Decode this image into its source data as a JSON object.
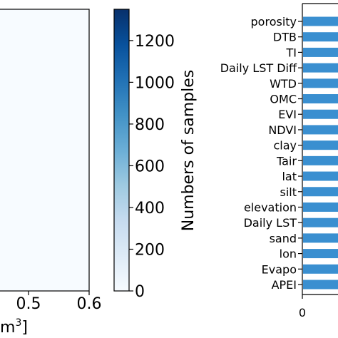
{
  "chart_data": [
    {
      "type": "heatmap",
      "x_tick_labels": [
        "0.5",
        "0.6"
      ],
      "xlabel_fragment": "m",
      "xlabel_superscript": "3",
      "xlabel_closing": "]",
      "xlim": [
        0.43,
        0.6
      ],
      "background_color": "#f7fbff"
    },
    {
      "type": "colorbar",
      "label": "Numbers of samples",
      "ticks": [
        0,
        200,
        400,
        600,
        800,
        1000,
        1200
      ],
      "tick_labels": [
        "0",
        "200",
        "400",
        "600",
        "800",
        "1000",
        "1200"
      ],
      "range": [
        0,
        1350
      ],
      "colormap": "Blues",
      "color_low": "#f7fbff",
      "color_high": "#08306b"
    },
    {
      "type": "bar",
      "orientation": "horizontal",
      "categories": [
        "porosity",
        "DTB",
        "TI",
        "Daily LST Diff",
        "WTD",
        "OMC",
        "EVI",
        "NDVI",
        "clay",
        "Tair",
        "lat",
        "silt",
        "elevation",
        "Daily LST",
        "sand",
        "lon",
        "Evapo",
        "APEI"
      ],
      "x_tick_labels": [
        "0"
      ],
      "bar_color": "#3a8fd0"
    }
  ]
}
